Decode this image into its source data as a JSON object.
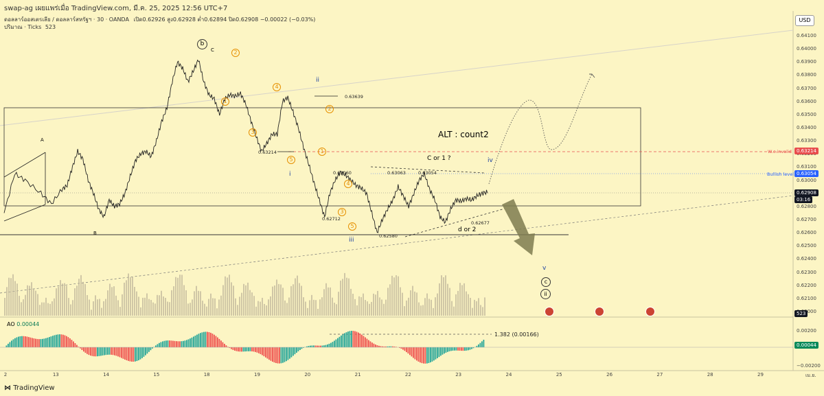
{
  "header": {
    "author": "swap-ag เผยแพร่เมื่อ TradingView.com, มี.ค. 25, 2025 12:56 UTC+7",
    "symbol_line": "ดอลลาร์ออสเตรเลีย / ดอลลาร์สหรัฐฯ · 30 · OANDA",
    "ohlc": "เปิด0.62926 สูง0.62928 ต่ำ0.62894 ปิด0.62908 −0.00022 (−0.03%)",
    "volume_line": "ปริมาณ · Ticks",
    "volume_value": "523",
    "currency_button": "USD"
  },
  "chart_data": {
    "type": "line",
    "price_axis": [
      "0.64100",
      "0.64000",
      "0.63900",
      "0.63800",
      "0.63700",
      "0.63600",
      "0.63500",
      "0.63400",
      "0.63300",
      "0.63200",
      "0.63100",
      "0.63000",
      "0.62900",
      "0.62800",
      "0.62700",
      "0.62600",
      "0.62500",
      "0.62400",
      "0.62300",
      "0.62200",
      "0.62100",
      "0.62000"
    ],
    "x_ticks": [
      "2",
      "13",
      "14",
      "15",
      "18",
      "19",
      "20",
      "21",
      "22",
      "23",
      "24",
      "25",
      "26",
      "27",
      "28",
      "29",
      "เม.ย.",
      "2"
    ],
    "ylim": [
      0.62,
      0.641
    ],
    "price_series": [
      [
        0,
        0.6275
      ],
      [
        2,
        0.6305
      ],
      [
        4,
        0.63
      ],
      [
        7,
        0.629
      ],
      [
        9,
        0.6282
      ],
      [
        11,
        0.6293
      ],
      [
        12,
        0.6296
      ],
      [
        13,
        0.631
      ],
      [
        14,
        0.6322
      ],
      [
        15,
        0.6316
      ],
      [
        16,
        0.63
      ],
      [
        17,
        0.629
      ],
      [
        18,
        0.6278
      ],
      [
        19,
        0.6272
      ],
      [
        20,
        0.6285
      ],
      [
        21,
        0.628
      ],
      [
        22,
        0.6282
      ],
      [
        23,
        0.629
      ],
      [
        24,
        0.6303
      ],
      [
        25,
        0.6315
      ],
      [
        26,
        0.632
      ],
      [
        27,
        0.6322
      ],
      [
        28,
        0.6318
      ],
      [
        29,
        0.633
      ],
      [
        30,
        0.6345
      ],
      [
        31,
        0.6355
      ],
      [
        32,
        0.6375
      ],
      [
        33,
        0.639
      ],
      [
        34,
        0.6385
      ],
      [
        35,
        0.6375
      ],
      [
        36,
        0.6383
      ],
      [
        37,
        0.6392
      ],
      [
        38,
        0.6375
      ],
      [
        39,
        0.6365
      ],
      [
        40,
        0.6362
      ],
      [
        41,
        0.635
      ],
      [
        42,
        0.6362
      ],
      [
        43,
        0.6365
      ],
      [
        44,
        0.6364
      ],
      [
        45,
        0.6366
      ],
      [
        46,
        0.6358
      ],
      [
        47,
        0.6345
      ],
      [
        48,
        0.6333
      ],
      [
        49,
        0.6322
      ],
      [
        50,
        0.6328
      ],
      [
        51,
        0.6335
      ],
      [
        52,
        0.6335
      ],
      [
        53,
        0.636
      ],
      [
        54,
        0.6363
      ],
      [
        55,
        0.6352
      ],
      [
        56,
        0.634
      ],
      [
        57,
        0.6325
      ],
      [
        58,
        0.6312
      ],
      [
        59,
        0.6298
      ],
      [
        60,
        0.6285
      ],
      [
        61,
        0.6272
      ],
      [
        62,
        0.629
      ],
      [
        63,
        0.63
      ],
      [
        64,
        0.6306
      ],
      [
        65,
        0.6304
      ],
      [
        66,
        0.63
      ],
      [
        67,
        0.6296
      ],
      [
        68,
        0.6294
      ],
      [
        69,
        0.629
      ],
      [
        70,
        0.6275
      ],
      [
        71,
        0.626
      ],
      [
        72,
        0.627
      ],
      [
        73,
        0.6278
      ],
      [
        74,
        0.6285
      ],
      [
        75,
        0.6295
      ],
      [
        76,
        0.6288
      ],
      [
        77,
        0.628
      ],
      [
        78,
        0.629
      ],
      [
        79,
        0.63
      ],
      [
        80,
        0.6305
      ],
      [
        81,
        0.6293
      ],
      [
        82,
        0.6285
      ],
      [
        83,
        0.6272
      ],
      [
        84,
        0.6268
      ],
      [
        85,
        0.6278
      ],
      [
        86,
        0.6285
      ],
      [
        87,
        0.6284
      ],
      [
        88,
        0.6286
      ],
      [
        89,
        0.6285
      ],
      [
        90,
        0.6288
      ],
      [
        91,
        0.629
      ],
      [
        92,
        0.6291
      ]
    ],
    "ao_value": "0.00044",
    "ao_axis": [
      "0.00200",
      "0.00044",
      "−0.00200"
    ],
    "annotations": {
      "alt": "ALT : count2",
      "c_or_1": "C or 1 ?",
      "d_or_2": "d or 2",
      "iv": "iv",
      "iii": "iii",
      "ii": "ii",
      "i": "i",
      "v": "v",
      "A": "A",
      "B": "B",
      "C_small": "C",
      "b_circ": "b",
      "c_circ": "c",
      "ii_circ": "ii",
      "fib": "1.382  (0.00166)",
      "wc_invalid": "W.c.invalid",
      "bullish": "Bullish level"
    },
    "price_notes": [
      "0.63639",
      "0.63214",
      "0.63060",
      "0.63063",
      "0.63054",
      "0.62712",
      "0.62580",
      "0.62677"
    ],
    "tags": {
      "invalid_price": "0.63214",
      "bullish_price": "0.63054",
      "last_price": "0.62908",
      "countdown": "03:16",
      "volume_tag": "523"
    },
    "colors": {
      "up": "#26a69a",
      "down": "#ef5350",
      "invalid": "#e84d4d",
      "bullish": "#2962ff",
      "last": "#131722",
      "bg": "#fcf5c4"
    }
  },
  "footer": {
    "brand": "TradingView"
  }
}
